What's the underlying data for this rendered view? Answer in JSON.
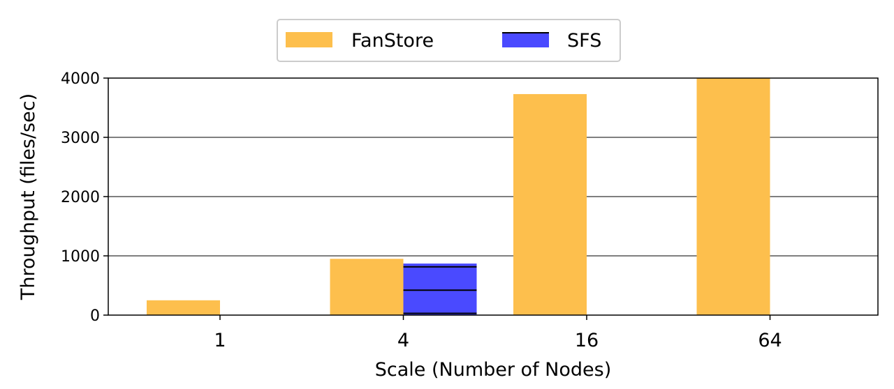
{
  "chart_data": {
    "type": "bar",
    "title": "",
    "xlabel": "Scale (Number of Nodes)",
    "ylabel": "Throughput (files/sec)",
    "categories": [
      "1",
      "4",
      "16",
      "64"
    ],
    "ylim": [
      0,
      4000
    ],
    "yticks": [
      "0",
      "1000",
      "2000",
      "3000",
      "4000"
    ],
    "grid": "horizontal",
    "legend_position": "top-center",
    "series": [
      {
        "name": "FanStore",
        "color": "#fdbf4d",
        "values": [
          250,
          950,
          3730,
          4000
        ]
      },
      {
        "name": "SFS",
        "color": "#4a4aff",
        "values": [
          null,
          870,
          null,
          null
        ],
        "line_markers": [
          30,
          420,
          815
        ]
      }
    ]
  }
}
